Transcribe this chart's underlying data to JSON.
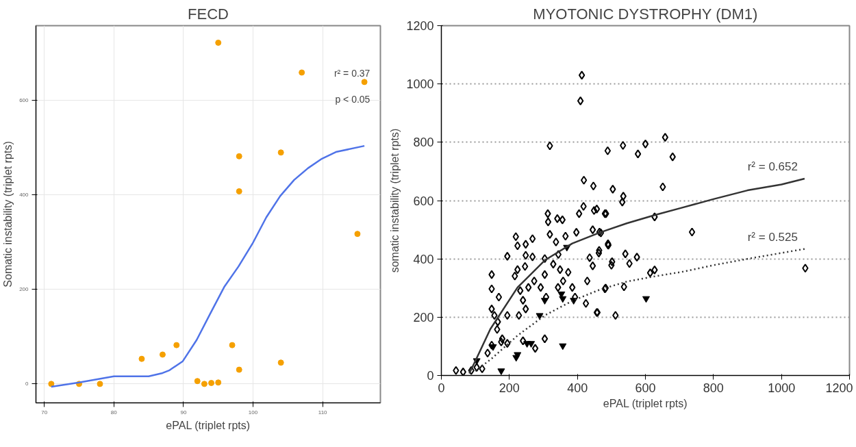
{
  "chart_data": [
    {
      "type": "scatter",
      "title": "FECD",
      "xlabel": "ePAL (triplet rpts)",
      "ylabel": "Somatic instability (triplet rpts)",
      "xlim": [
        68.8,
        118.3
      ],
      "ylim": [
        -40,
        757
      ],
      "xticks": [
        70,
        80,
        90,
        100,
        110
      ],
      "yticks": [
        0,
        200,
        400,
        600
      ],
      "grid": true,
      "annotations": [
        "r² = 0.37",
        "p < 0.05"
      ],
      "series": [
        {
          "color": "#f5a000",
          "marker": "circle",
          "x": [
            71,
            75,
            78,
            84,
            87,
            89,
            92,
            93,
            94,
            95,
            95,
            97,
            98,
            98,
            98,
            104,
            104,
            107,
            115,
            116
          ],
          "values": [
            0,
            0,
            0,
            53,
            62,
            82,
            6,
            0,
            2,
            3,
            721,
            82,
            481,
            407,
            30,
            489,
            45,
            658,
            317,
            638
          ]
        },
        {
          "type": "line",
          "color": "#4f73e8",
          "marker": "none",
          "line_style": "solid",
          "x": [
            71,
            75,
            80,
            85,
            87,
            88,
            89.9,
            91.9,
            93.9,
            95.9,
            97.9,
            99.9,
            101.9,
            103.9,
            105.9,
            107.9,
            109.9,
            111.9,
            116
          ],
          "values": [
            -6,
            3,
            16,
            16,
            23,
            29,
            48,
            93,
            150,
            206,
            248,
            296,
            352,
            397,
            431,
            456,
            476,
            490,
            503
          ]
        }
      ]
    },
    {
      "type": "scatter",
      "title": "MYOTONIC DYSTROPHY (DM1)",
      "xlabel": "ePAL (triplet rpts)",
      "ylabel": "somatic instability (triplet rpts)",
      "xlim": [
        0,
        1200
      ],
      "ylim": [
        0,
        1200
      ],
      "xticks": [
        0,
        200,
        400,
        600,
        800,
        1000,
        1200
      ],
      "yticks": [
        0,
        200,
        400,
        600,
        800,
        1000,
        1200
      ],
      "grid": "y",
      "annotations": [
        {
          "text": "r² = 0.652",
          "x": 1068,
          "y": 675
        },
        {
          "text": "r² = 0.525",
          "x": 1068,
          "y": 434
        }
      ],
      "series": [
        {
          "color": "#000000",
          "marker": "diamond",
          "x": [
            413,
            409,
            319,
            489,
            534,
            578,
            600,
            658,
            680,
            419,
            447,
            504,
            535,
            532,
            651,
            627,
            737,
            1070,
            627,
            614,
            512,
            459,
            537,
            483,
            541,
            553,
            575,
            500,
            502,
            491,
            464,
            457,
            481,
            465,
            490,
            194,
            219,
            224,
            248,
            268,
            148,
            148,
            169,
            148,
            156,
            166,
            194,
            136,
            148,
            179,
            194,
            104,
            88,
            64,
            43,
            120,
            216,
            224,
            246,
            268,
            248,
            232,
            256,
            273,
            240,
            228,
            248,
            240,
            276,
            304,
            304,
            292,
            308,
            304,
            313,
            314,
            319,
            341,
            356,
            337,
            344,
            329,
            349,
            373,
            343,
            358,
            365,
            397,
            405,
            418,
            449,
            445,
            469,
            484,
            463,
            436,
            445,
            490,
            385,
            393,
            425,
            429,
            481,
            457,
            176,
            164
          ],
          "values": [
            1030,
            942,
            788,
            771,
            789,
            760,
            794,
            817,
            750,
            670,
            650,
            639,
            615,
            595,
            647,
            544,
            492,
            368,
            362,
            352,
            206,
            216,
            304,
            300,
            417,
            384,
            406,
            378,
            390,
            447,
            429,
            571,
            555,
            492,
            452,
            409,
            476,
            445,
            450,
            469,
            346,
            297,
            269,
            228,
            206,
            184,
            206,
            77,
            104,
            126,
            110,
            28,
            17,
            12,
            17,
            23,
            341,
            363,
            374,
            407,
            412,
            291,
            302,
            324,
            258,
            206,
            228,
            119,
            93,
            401,
            346,
            302,
            269,
            126,
            555,
            527,
            484,
            538,
            534,
            458,
            415,
            382,
            363,
            354,
            302,
            324,
            478,
            491,
            555,
            580,
            566,
            500,
            489,
            555,
            420,
            404,
            376,
            448,
            302,
            269,
            247,
            324,
            297,
            216,
            115,
            158
          ]
        },
        {
          "color": "#000000",
          "marker": "triangle",
          "x": [
            369,
            357,
            353,
            389,
            304,
            289,
            357,
            252,
            264,
            224,
            220,
            176,
            152,
            104,
            602
          ],
          "values": [
            440,
            264,
            280,
            258,
            258,
            206,
            102,
            110,
            110,
            72,
            62,
            16,
            99,
            51,
            264
          ]
        },
        {
          "type": "line",
          "color": "#333333",
          "marker": "none",
          "line_style": "solid",
          "x": [
            82,
            100,
            144,
            224,
            304,
            385,
            465,
            545,
            627,
            706,
            800,
            900,
            1000,
            1068
          ],
          "values": [
            7,
            50,
            159,
            302,
            395,
            453,
            490,
            522,
            550,
            575,
            605,
            635,
            655,
            675
          ]
        },
        {
          "type": "line",
          "color": "#333333",
          "marker": "none",
          "line_style": "dotted",
          "x": [
            100,
            150,
            224,
            304,
            385,
            465,
            545,
            627,
            706,
            803,
            900,
            1068
          ],
          "values": [
            15,
            60,
            137,
            206,
            256,
            294,
            322,
            340,
            355,
            379,
            400,
            434
          ]
        }
      ]
    }
  ]
}
